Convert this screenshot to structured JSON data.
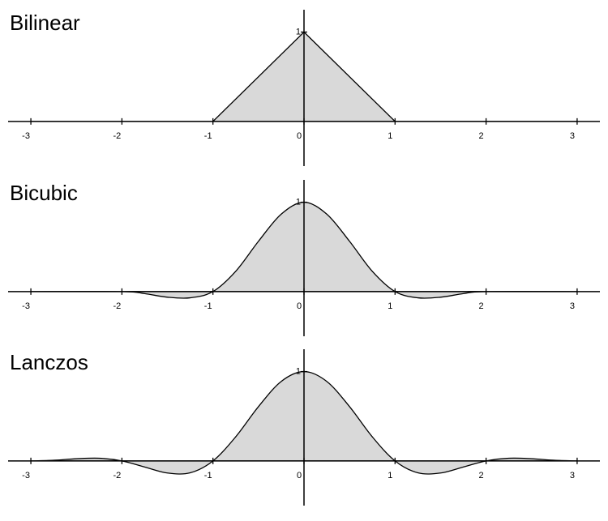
{
  "chart_data": [
    {
      "type": "line",
      "title": "Bilinear",
      "color": "#000000",
      "fill": "#d9d9d9",
      "x": [
        -3,
        -1,
        0,
        1,
        3
      ],
      "values": [
        0,
        0,
        1,
        0,
        0
      ],
      "xlim": [
        -3.25,
        3.25
      ],
      "ylim": [
        -0.5,
        1.25
      ],
      "xticks": [
        -3,
        -2,
        -1,
        0,
        1,
        2,
        3
      ],
      "yticks": [
        1
      ]
    },
    {
      "type": "line",
      "title": "Bicubic",
      "color": "#000000",
      "fill": "#d9d9d9",
      "x": [
        -3,
        -2,
        -1.75,
        -1.5,
        -1.25,
        -1,
        -0.75,
        -0.5,
        -0.25,
        0,
        0.25,
        0.5,
        0.75,
        1,
        1.25,
        1.5,
        1.75,
        2,
        3
      ],
      "values": [
        0,
        0,
        -0.023,
        -0.063,
        -0.07,
        0,
        0.227,
        0.563,
        0.867,
        1,
        0.867,
        0.563,
        0.227,
        0,
        -0.07,
        -0.063,
        -0.023,
        0,
        0
      ],
      "xlim": [
        -3.25,
        3.25
      ],
      "ylim": [
        -0.5,
        1.25
      ],
      "xticks": [
        -3,
        -2,
        -1,
        0,
        1,
        2,
        3
      ],
      "yticks": [
        1
      ]
    },
    {
      "type": "line",
      "title": "Lanczos",
      "color": "#000000",
      "fill": "#d9d9d9",
      "x": [
        -3,
        -2.75,
        -2.5,
        -2.25,
        -2,
        -1.75,
        -1.5,
        -1.25,
        -1,
        -0.75,
        -0.5,
        -0.25,
        0,
        0.25,
        0.5,
        0.75,
        1,
        1.25,
        1.5,
        1.75,
        2,
        2.25,
        2.5,
        2.75,
        3
      ],
      "values": [
        0,
        0.007,
        0.024,
        0.03,
        0,
        -0.068,
        -0.135,
        -0.133,
        0,
        0.27,
        0.608,
        0.89,
        1,
        0.89,
        0.608,
        0.27,
        0,
        -0.133,
        -0.135,
        -0.068,
        0,
        0.03,
        0.024,
        0.007,
        0
      ],
      "xlim": [
        -3.25,
        3.25
      ],
      "ylim": [
        -0.5,
        1.25
      ],
      "xticks": [
        -3,
        -2,
        -1,
        0,
        1,
        2,
        3
      ],
      "yticks": [
        1
      ]
    }
  ]
}
